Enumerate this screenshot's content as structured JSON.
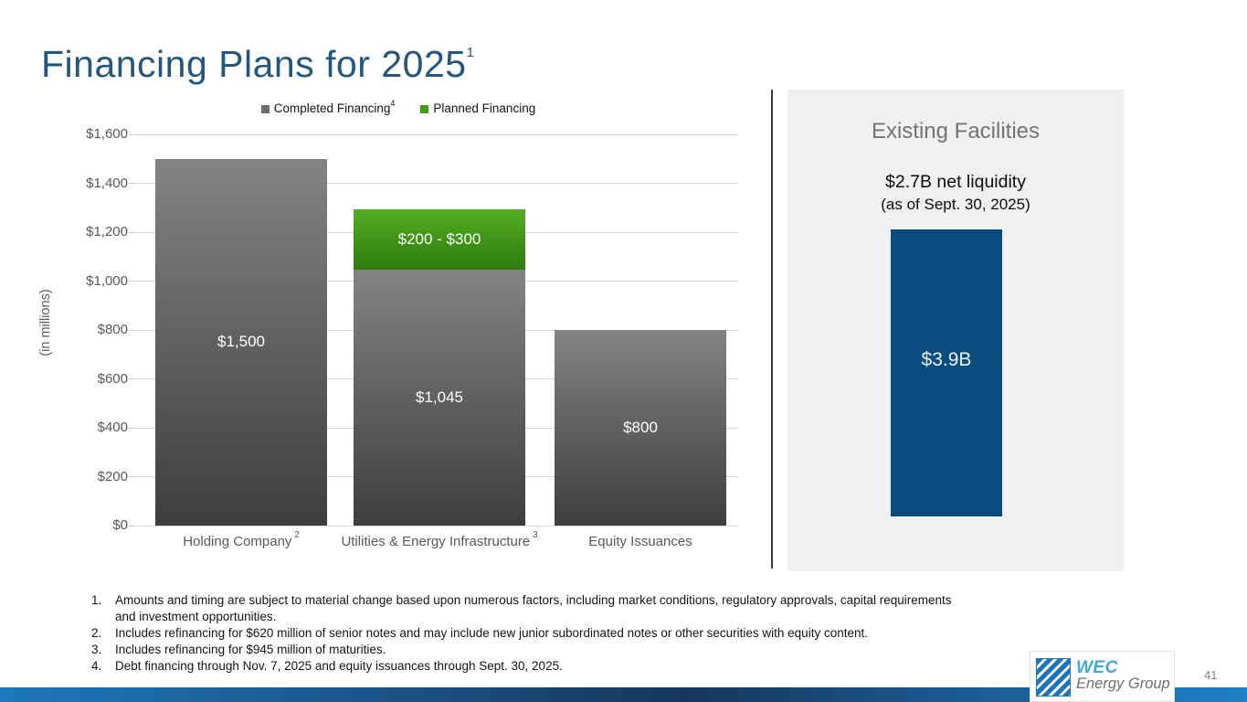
{
  "slide": {
    "title": "Financing Plans for 2025",
    "title_sup": "1",
    "page_number": "41"
  },
  "chart_data": {
    "type": "bar",
    "stacked": true,
    "ylabel": "(in millions)",
    "ylim": [
      0,
      1600
    ],
    "grid": true,
    "legend_position": "top-center",
    "legend": [
      {
        "label": "Completed Financing",
        "sup": "4",
        "color": "#6d6d6d"
      },
      {
        "label": "Planned Financing",
        "sup": "",
        "color": "#459c17"
      }
    ],
    "yticks": [
      {
        "value": 0,
        "label": "$0"
      },
      {
        "value": 200,
        "label": "$200"
      },
      {
        "value": 400,
        "label": "$400"
      },
      {
        "value": 600,
        "label": "$600"
      },
      {
        "value": 800,
        "label": "$800"
      },
      {
        "value": 1000,
        "label": "$1,000"
      },
      {
        "value": 1200,
        "label": "$1,200"
      },
      {
        "value": 1400,
        "label": "$1,400"
      },
      {
        "value": 1600,
        "label": "$1,600"
      }
    ],
    "bars": [
      {
        "category": "Holding Company",
        "sup": "2",
        "segments": [
          {
            "series": "Completed Financing",
            "value": 1500,
            "label": "$1,500",
            "color": "gray"
          }
        ]
      },
      {
        "category": "Utilities & Energy Infrastructure",
        "sup": "3",
        "segments": [
          {
            "series": "Completed Financing",
            "value": 1045,
            "label": "$1,045",
            "color": "gray"
          },
          {
            "series": "Planned Financing",
            "value": 250,
            "label": "$200 - $300",
            "color": "green"
          }
        ]
      },
      {
        "category": "Equity Issuances",
        "sup": "",
        "segments": [
          {
            "series": "Completed Financing",
            "value": 800,
            "label": "$800",
            "color": "gray"
          }
        ]
      }
    ]
  },
  "panel": {
    "heading": "Existing Facilities",
    "liquidity_line1": "$2.7B net liquidity",
    "liquidity_line2": "(as of Sept. 30, 2025)",
    "facility_bar_label": "$3.9B",
    "facility_bar_color": "#0a4c7e"
  },
  "footnotes": [
    {
      "num": "1.",
      "text": "Amounts and timing are subject to material change based upon numerous factors, including market conditions, regulatory approvals, capital requirements and investment opportunities."
    },
    {
      "num": "2.",
      "text": "Includes refinancing for $620 million of senior notes and may include new junior subordinated notes or other securities with equity content."
    },
    {
      "num": "3.",
      "text": "Includes refinancing for $945 million of maturities."
    },
    {
      "num": "4.",
      "text": "Debt financing through Nov. 7, 2025 and equity issuances through Sept. 30, 2025."
    }
  ],
  "logo": {
    "wec": "WEC",
    "group": "Energy Group"
  }
}
